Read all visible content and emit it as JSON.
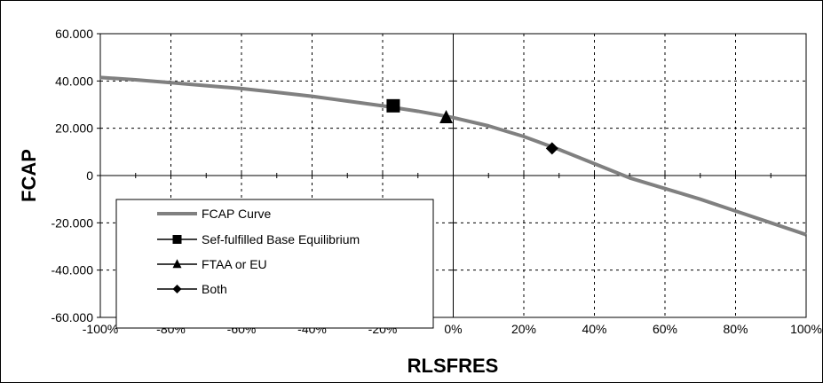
{
  "chart_data": {
    "type": "line",
    "title": "",
    "xlabel": "RLSFRES",
    "ylabel": "FCAP",
    "xlim": [
      -1,
      1
    ],
    "ylim": [
      -60,
      60
    ],
    "x_ticks": [
      -1,
      -0.8,
      -0.6,
      -0.4,
      -0.2,
      0,
      0.2,
      0.4,
      0.6,
      0.8,
      1
    ],
    "x_tick_labels": [
      "-100%",
      "-80%",
      "-60%",
      "-40%",
      "-20%",
      "0%",
      "20%",
      "40%",
      "60%",
      "80%",
      "100%"
    ],
    "y_ticks": [
      60,
      40,
      20,
      0,
      -20,
      -40,
      -60
    ],
    "y_tick_labels": [
      "60.000",
      "40.000",
      "20.000",
      "0",
      "-20.000",
      "-40.000",
      "-60.000"
    ],
    "grid": true,
    "legend_position": "bottom-left",
    "series": [
      {
        "name": "FCAP Curve",
        "color": "#808080",
        "marker": "none",
        "x": [
          -1.0,
          -0.9,
          -0.8,
          -0.7,
          -0.6,
          -0.5,
          -0.4,
          -0.3,
          -0.2,
          -0.1,
          0.0,
          0.1,
          0.2,
          0.3,
          0.4,
          0.5,
          0.6,
          0.7,
          0.8,
          0.9,
          1.0
        ],
        "y": [
          41.5,
          40.5,
          39.3,
          38.0,
          36.8,
          35.2,
          33.5,
          31.5,
          29.5,
          27.2,
          24.5,
          21.0,
          16.5,
          11.0,
          5.0,
          -1.0,
          -5.5,
          -10.0,
          -15.0,
          -20.0,
          -25.0
        ]
      },
      {
        "name": "Sef-fulfilled Base Equilibrium",
        "color": "#000000",
        "marker": "square",
        "x": [
          -0.17
        ],
        "y": [
          29.5
        ]
      },
      {
        "name": "FTAA or EU",
        "color": "#000000",
        "marker": "triangle",
        "x": [
          -0.02
        ],
        "y": [
          24.5
        ]
      },
      {
        "name": "Both",
        "color": "#000000",
        "marker": "diamond",
        "x": [
          0.28
        ],
        "y": [
          11.5
        ]
      }
    ]
  }
}
